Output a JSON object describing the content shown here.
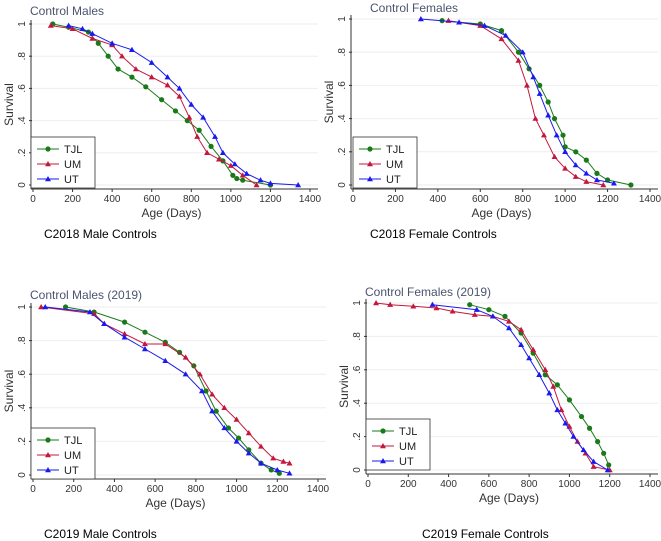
{
  "chart_data": [
    {
      "type": "line",
      "title": "Control Males",
      "caption": "C2018 Male Controls",
      "xlabel": "Age (Days)",
      "ylabel": "Survival",
      "xlim": [
        0,
        1400
      ],
      "ylim": [
        0,
        1
      ],
      "xticks": [
        "0",
        "200",
        "400",
        "600",
        "800",
        "1000",
        "1200",
        "1400"
      ],
      "yticks": [
        "0",
        ".2",
        ".4",
        ".6",
        ".8",
        "1"
      ],
      "grid": true,
      "legend": "bottom-left",
      "series": [
        {
          "name": "TJL",
          "color": "#1a7a1a",
          "marker": "circle",
          "points": [
            [
              100,
              1
            ],
            [
              180,
              0.98
            ],
            [
              280,
              0.95
            ],
            [
              330,
              0.88
            ],
            [
              380,
              0.8
            ],
            [
              430,
              0.72
            ],
            [
              500,
              0.67
            ],
            [
              570,
              0.61
            ],
            [
              650,
              0.53
            ],
            [
              720,
              0.46
            ],
            [
              780,
              0.4
            ],
            [
              840,
              0.34
            ],
            [
              900,
              0.24
            ],
            [
              960,
              0.15
            ],
            [
              1010,
              0.06
            ],
            [
              1030,
              0.04
            ],
            [
              1060,
              0.03
            ],
            [
              1200,
              0
            ]
          ]
        },
        {
          "name": "UM",
          "color": "#c4173e",
          "marker": "triangle",
          "points": [
            [
              90,
              0.99
            ],
            [
              200,
              0.97
            ],
            [
              300,
              0.91
            ],
            [
              400,
              0.87
            ],
            [
              450,
              0.8
            ],
            [
              520,
              0.72
            ],
            [
              600,
              0.67
            ],
            [
              680,
              0.62
            ],
            [
              740,
              0.55
            ],
            [
              790,
              0.42
            ],
            [
              830,
              0.3
            ],
            [
              880,
              0.2
            ],
            [
              940,
              0.16
            ],
            [
              1000,
              0.12
            ],
            [
              1060,
              0.06
            ],
            [
              1130,
              0
            ]
          ]
        },
        {
          "name": "UT",
          "color": "#1a1aee",
          "marker": "triangle",
          "points": [
            [
              180,
              0.99
            ],
            [
              250,
              0.97
            ],
            [
              300,
              0.94
            ],
            [
              400,
              0.88
            ],
            [
              500,
              0.84
            ],
            [
              600,
              0.76
            ],
            [
              680,
              0.67
            ],
            [
              740,
              0.6
            ],
            [
              800,
              0.5
            ],
            [
              860,
              0.42
            ],
            [
              920,
              0.3
            ],
            [
              960,
              0.2
            ],
            [
              1020,
              0.13
            ],
            [
              1080,
              0.07
            ],
            [
              1150,
              0.03
            ],
            [
              1200,
              0.01
            ],
            [
              1340,
              0
            ]
          ]
        }
      ]
    },
    {
      "type": "line",
      "title": "Control Females",
      "caption": "C2018 Female Controls",
      "xlabel": "Age (Days)",
      "ylabel": "Survival",
      "xlim": [
        0,
        1400
      ],
      "ylim": [
        0,
        1
      ],
      "xticks": [
        "0",
        "200",
        "400",
        "600",
        "800",
        "1000",
        "1200",
        "1400"
      ],
      "yticks": [
        "0",
        ".2",
        ".4",
        ".6",
        ".8",
        "1"
      ],
      "grid": true,
      "legend": "bottom-left",
      "series": [
        {
          "name": "TJL",
          "color": "#1a7a1a",
          "marker": "circle",
          "points": [
            [
              420,
              0.99
            ],
            [
              600,
              0.97
            ],
            [
              700,
              0.93
            ],
            [
              780,
              0.8
            ],
            [
              830,
              0.7
            ],
            [
              880,
              0.6
            ],
            [
              920,
              0.5
            ],
            [
              950,
              0.4
            ],
            [
              990,
              0.3
            ],
            [
              1000,
              0.23
            ],
            [
              1050,
              0.2
            ],
            [
              1100,
              0.15
            ],
            [
              1150,
              0.07
            ],
            [
              1200,
              0.03
            ],
            [
              1310,
              0
            ]
          ]
        },
        {
          "name": "UM",
          "color": "#c4173e",
          "marker": "triangle",
          "points": [
            [
              450,
              0.99
            ],
            [
              600,
              0.96
            ],
            [
              700,
              0.88
            ],
            [
              780,
              0.75
            ],
            [
              820,
              0.6
            ],
            [
              860,
              0.4
            ],
            [
              900,
              0.3
            ],
            [
              950,
              0.17
            ],
            [
              1000,
              0.1
            ],
            [
              1050,
              0.05
            ],
            [
              1100,
              0.02
            ],
            [
              1180,
              0
            ]
          ]
        },
        {
          "name": "UT",
          "color": "#1a1aee",
          "marker": "triangle",
          "points": [
            [
              320,
              1
            ],
            [
              500,
              0.98
            ],
            [
              620,
              0.96
            ],
            [
              720,
              0.9
            ],
            [
              800,
              0.8
            ],
            [
              850,
              0.65
            ],
            [
              880,
              0.55
            ],
            [
              920,
              0.42
            ],
            [
              960,
              0.3
            ],
            [
              1000,
              0.2
            ],
            [
              1050,
              0.12
            ],
            [
              1100,
              0.07
            ],
            [
              1150,
              0.03
            ],
            [
              1230,
              0.01
            ]
          ]
        }
      ]
    },
    {
      "type": "line",
      "title": "Control Males (2019)",
      "caption": "C2019 Male Controls",
      "xlabel": "Age (Days)",
      "ylabel": "Survival",
      "xlim": [
        0,
        1400
      ],
      "ylim": [
        0,
        1
      ],
      "xticks": [
        "0",
        "200",
        "400",
        "600",
        "800",
        "1000",
        "1200",
        "1400"
      ],
      "yticks": [
        "0",
        ".2",
        ".4",
        ".6",
        ".8",
        "1"
      ],
      "grid": true,
      "legend": "bottom-left",
      "series": [
        {
          "name": "TJL",
          "color": "#1a7a1a",
          "marker": "circle",
          "points": [
            [
              160,
              1
            ],
            [
              300,
              0.97
            ],
            [
              450,
              0.91
            ],
            [
              550,
              0.85
            ],
            [
              650,
              0.79
            ],
            [
              720,
              0.73
            ],
            [
              790,
              0.65
            ],
            [
              850,
              0.5
            ],
            [
              900,
              0.38
            ],
            [
              960,
              0.28
            ],
            [
              1010,
              0.22
            ],
            [
              1060,
              0.15
            ],
            [
              1120,
              0.07
            ],
            [
              1170,
              0.03
            ],
            [
              1210,
              0.01
            ]
          ]
        },
        {
          "name": "UM",
          "color": "#c4173e",
          "marker": "triangle",
          "points": [
            [
              40,
              1
            ],
            [
              300,
              0.96
            ],
            [
              350,
              0.9
            ],
            [
              450,
              0.84
            ],
            [
              550,
              0.78
            ],
            [
              650,
              0.78
            ],
            [
              750,
              0.7
            ],
            [
              820,
              0.6
            ],
            [
              880,
              0.48
            ],
            [
              940,
              0.4
            ],
            [
              1000,
              0.33
            ],
            [
              1060,
              0.25
            ],
            [
              1120,
              0.17
            ],
            [
              1180,
              0.1
            ],
            [
              1230,
              0.08
            ],
            [
              1260,
              0.07
            ]
          ]
        },
        {
          "name": "UT",
          "color": "#1a1aee",
          "marker": "triangle",
          "points": [
            [
              60,
              1
            ],
            [
              280,
              0.97
            ],
            [
              350,
              0.9
            ],
            [
              450,
              0.82
            ],
            [
              550,
              0.75
            ],
            [
              650,
              0.68
            ],
            [
              750,
              0.6
            ],
            [
              830,
              0.5
            ],
            [
              880,
              0.38
            ],
            [
              940,
              0.28
            ],
            [
              1000,
              0.2
            ],
            [
              1060,
              0.13
            ],
            [
              1120,
              0.07
            ],
            [
              1200,
              0.03
            ],
            [
              1260,
              0.01
            ]
          ]
        }
      ]
    },
    {
      "type": "line",
      "title": "Control Females (2019)",
      "caption": "C2019 Female Controls",
      "xlabel": "Age (Days)",
      "ylabel": "Survival",
      "xlim": [
        0,
        1400
      ],
      "ylim": [
        0,
        1
      ],
      "xticks": [
        "0",
        "200",
        "400",
        "600",
        "800",
        "1000",
        "1200",
        "1400"
      ],
      "yticks": [
        "0",
        ".2",
        ".4",
        ".6",
        ".8",
        "1"
      ],
      "grid": true,
      "legend": "bottom-left",
      "series": [
        {
          "name": "TJL",
          "color": "#1a7a1a",
          "marker": "circle",
          "points": [
            [
              505,
              0.99
            ],
            [
              600,
              0.96
            ],
            [
              680,
              0.92
            ],
            [
              760,
              0.82
            ],
            [
              820,
              0.7
            ],
            [
              880,
              0.57
            ],
            [
              940,
              0.51
            ],
            [
              1000,
              0.42
            ],
            [
              1060,
              0.32
            ],
            [
              1100,
              0.25
            ],
            [
              1140,
              0.17
            ],
            [
              1170,
              0.1
            ],
            [
              1195,
              0.03
            ]
          ]
        },
        {
          "name": "UM",
          "color": "#c4173e",
          "marker": "triangle",
          "points": [
            [
              40,
              1
            ],
            [
              110,
              0.99
            ],
            [
              225,
              0.98
            ],
            [
              340,
              0.97
            ],
            [
              420,
              0.95
            ],
            [
              530,
              0.93
            ],
            [
              620,
              0.92
            ],
            [
              700,
              0.89
            ],
            [
              760,
              0.84
            ],
            [
              820,
              0.72
            ],
            [
              880,
              0.6
            ],
            [
              920,
              0.5
            ],
            [
              960,
              0.36
            ],
            [
              1000,
              0.26
            ],
            [
              1040,
              0.17
            ],
            [
              1080,
              0.1
            ],
            [
              1120,
              0.02
            ],
            [
              1200,
              0
            ]
          ]
        },
        {
          "name": "UT",
          "color": "#1a1aee",
          "marker": "triangle",
          "points": [
            [
              320,
              0.99
            ],
            [
              540,
              0.96
            ],
            [
              620,
              0.92
            ],
            [
              700,
              0.85
            ],
            [
              760,
              0.75
            ],
            [
              800,
              0.67
            ],
            [
              850,
              0.57
            ],
            [
              900,
              0.46
            ],
            [
              940,
              0.36
            ],
            [
              980,
              0.28
            ],
            [
              1020,
              0.2
            ],
            [
              1070,
              0.12
            ],
            [
              1120,
              0.05
            ],
            [
              1190,
              0
            ]
          ]
        }
      ]
    }
  ]
}
